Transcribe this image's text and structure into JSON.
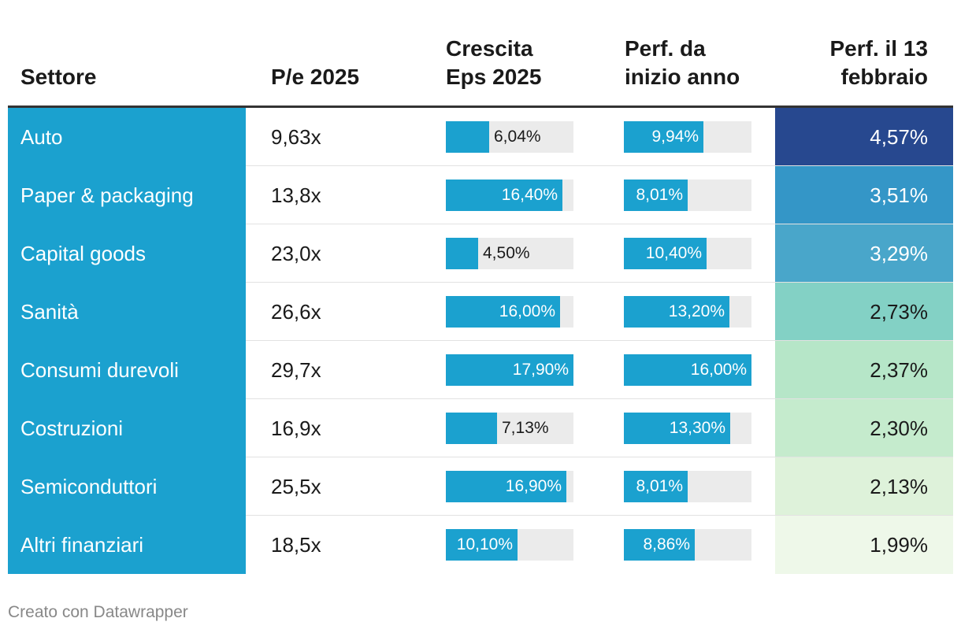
{
  "headers": {
    "sector": "Settore",
    "pe": "P/e 2025",
    "eps": [
      "Crescita",
      "Eps 2025"
    ],
    "ytd": [
      "Perf. da",
      "inizio anno"
    ],
    "feb13": [
      "Perf. il 13",
      "febbraio"
    ]
  },
  "colors": {
    "sector_bg": "#1ba1cf",
    "bar_fill": "#1ba1cf",
    "bar_track": "#ebebeb"
  },
  "chart_data": {
    "type": "table",
    "columns": [
      "Settore",
      "P/e 2025",
      "Crescita Eps 2025",
      "Perf. da inizio anno",
      "Perf. il 13 febbraio"
    ],
    "eps_scale_max": 17.9,
    "ytd_scale_max": 16.0,
    "heat_max": 4.57,
    "heat_min": 1.99,
    "rows": [
      {
        "sector": "Auto",
        "pe": "9,63x",
        "eps": 6.04,
        "eps_label": "6,04%",
        "ytd": 9.94,
        "ytd_label": "9,94%",
        "feb13": 4.57,
        "feb13_label": "4,57%",
        "heat_color": "#27488f"
      },
      {
        "sector": "Paper & packaging",
        "pe": "13,8x",
        "eps": 16.4,
        "eps_label": "16,40%",
        "ytd": 8.01,
        "ytd_label": "8,01%",
        "feb13": 3.51,
        "feb13_label": "3,51%",
        "heat_color": "#3496c7"
      },
      {
        "sector": "Capital goods",
        "pe": "23,0x",
        "eps": 4.5,
        "eps_label": "4,50%",
        "ytd": 10.4,
        "ytd_label": "10,40%",
        "feb13": 3.29,
        "feb13_label": "3,29%",
        "heat_color": "#49a6ca"
      },
      {
        "sector": "Sanità",
        "pe": "26,6x",
        "eps": 16.0,
        "eps_label": "16,00%",
        "ytd": 13.2,
        "ytd_label": "13,20%",
        "feb13": 2.73,
        "feb13_label": "2,73%",
        "heat_color": "#83d1c5"
      },
      {
        "sector": "Consumi durevoli",
        "pe": "29,7x",
        "eps": 17.9,
        "eps_label": "17,90%",
        "ytd": 16.0,
        "ytd_label": "16,00%",
        "feb13": 2.37,
        "feb13_label": "2,37%",
        "heat_color": "#b6e6c8"
      },
      {
        "sector": "Costruzioni",
        "pe": "16,9x",
        "eps": 7.13,
        "eps_label": "7,13%",
        "ytd": 13.3,
        "ytd_label": "13,30%",
        "feb13": 2.3,
        "feb13_label": "2,30%",
        "heat_color": "#c5ebcd"
      },
      {
        "sector": "Semiconduttori",
        "pe": "25,5x",
        "eps": 16.9,
        "eps_label": "16,90%",
        "ytd": 8.01,
        "ytd_label": "8,01%",
        "feb13": 2.13,
        "feb13_label": "2,13%",
        "heat_color": "#def2da"
      },
      {
        "sector": "Altri finanziari",
        "pe": "18,5x",
        "eps": 10.1,
        "eps_label": "10,10%",
        "ytd": 8.86,
        "ytd_label": "8,86%",
        "feb13": 1.99,
        "feb13_label": "1,99%",
        "heat_color": "#eef8e9"
      }
    ]
  },
  "footer": "Creato con Datawrapper"
}
